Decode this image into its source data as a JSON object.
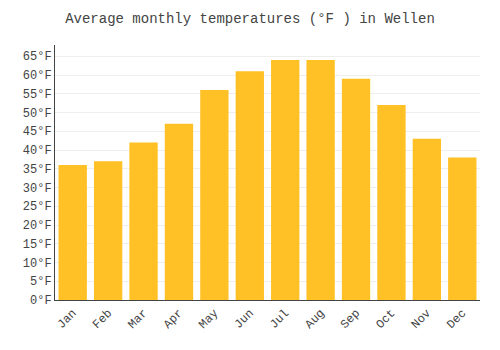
{
  "chart_data": {
    "type": "bar",
    "title": "Average monthly temperatures (°F ) in Wellen",
    "categories": [
      "Jan",
      "Feb",
      "Mar",
      "Apr",
      "May",
      "Jun",
      "Jul",
      "Aug",
      "Sep",
      "Oct",
      "Nov",
      "Dec"
    ],
    "values": [
      36,
      37,
      42,
      47,
      56,
      61,
      64,
      64,
      59,
      52,
      43,
      38
    ],
    "color": "#FFC125",
    "ylim": [
      0,
      68
    ],
    "yticks": [
      {
        "value": 0,
        "label": "0°F"
      },
      {
        "value": 5,
        "label": "5°F"
      },
      {
        "value": 10,
        "label": "10°F"
      },
      {
        "value": 15,
        "label": "15°F"
      },
      {
        "value": 20,
        "label": "20°F"
      },
      {
        "value": 25,
        "label": "25°F"
      },
      {
        "value": 30,
        "label": "30°F"
      },
      {
        "value": 35,
        "label": "35°F"
      },
      {
        "value": 40,
        "label": "40°F"
      },
      {
        "value": 45,
        "label": "45°F"
      },
      {
        "value": 50,
        "label": "50°F"
      },
      {
        "value": 55,
        "label": "55°F"
      },
      {
        "value": 60,
        "label": "60°F"
      },
      {
        "value": 65,
        "label": "65°F"
      }
    ],
    "grid": true
  }
}
